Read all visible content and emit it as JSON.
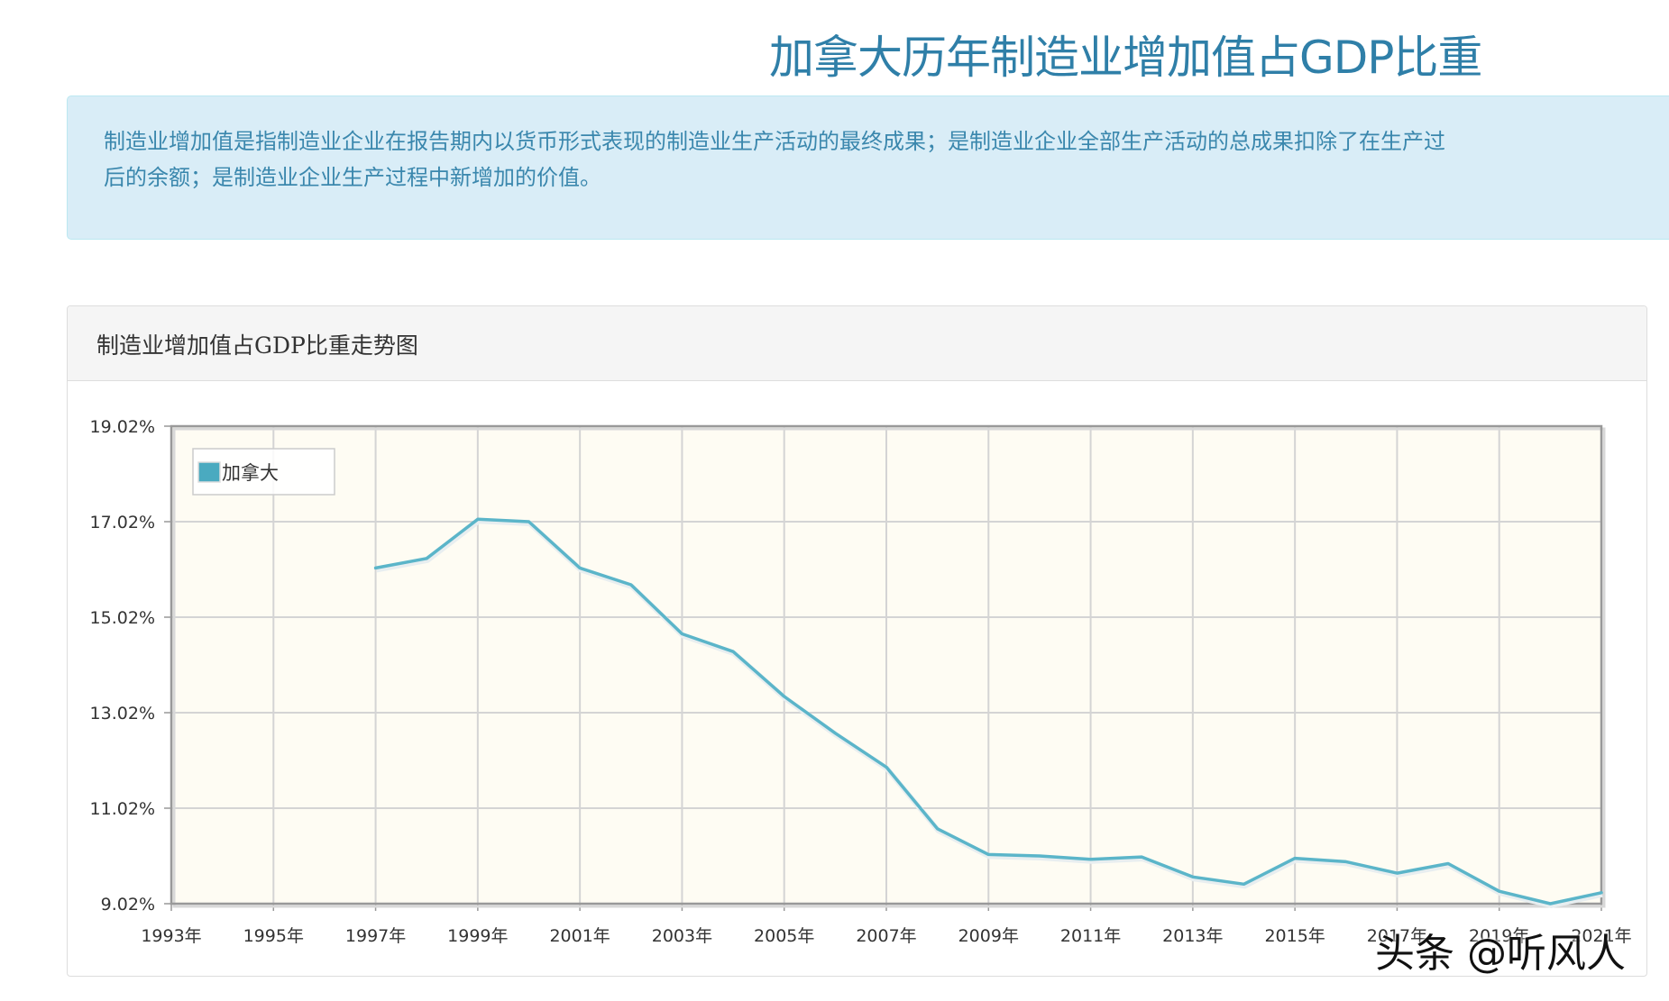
{
  "header": {
    "title": "加拿大历年制造业增加值占GDP比重"
  },
  "info": {
    "line1": "制造业增加值是指制造业企业在报告期内以货币形式表现的制造业生产活动的最终成果；是制造业企业全部生产活动的总成果扣除了在生产过",
    "line2": "后的余额；是制造业企业生产过程中新增加的价值。"
  },
  "panel": {
    "title": "制造业增加值占GDP比重走势图"
  },
  "watermark": "头条 @听风人",
  "colors": {
    "series": "#5bb5c9",
    "plot_bg": "#fefcf3",
    "grid": "#d4d4d4",
    "axis": "#999999",
    "legend_swatch": "#4aaac0"
  },
  "chart_data": {
    "type": "line",
    "xlabel": "",
    "ylabel": "",
    "xlim": [
      1993,
      2021
    ],
    "ylim": [
      9.02,
      19.02
    ],
    "grid": true,
    "legend": "top-left",
    "y_ticks": [
      "9.02%",
      "11.02%",
      "13.02%",
      "15.02%",
      "17.02%",
      "19.02%"
    ],
    "x_ticks": [
      "1993年",
      "1995年",
      "1997年",
      "1999年",
      "2001年",
      "2003年",
      "2005年",
      "2007年",
      "2009年",
      "2011年",
      "2013年",
      "2015年",
      "2017年",
      "2019年",
      "2021年"
    ],
    "series": [
      {
        "name": "加拿大",
        "x": [
          1997,
          1998,
          1999,
          2000,
          2001,
          2002,
          2003,
          2004,
          2005,
          2006,
          2007,
          2008,
          2009,
          2010,
          2011,
          2012,
          2013,
          2014,
          2015,
          2016,
          2017,
          2018,
          2019,
          2020,
          2021
        ],
        "y": [
          16.05,
          16.25,
          17.07,
          17.02,
          16.05,
          15.7,
          14.67,
          14.3,
          13.36,
          12.59,
          11.88,
          10.59,
          10.05,
          10.02,
          9.95,
          10.0,
          9.58,
          9.43,
          9.97,
          9.9,
          9.66,
          9.86,
          9.28,
          9.02,
          9.25
        ]
      }
    ]
  }
}
